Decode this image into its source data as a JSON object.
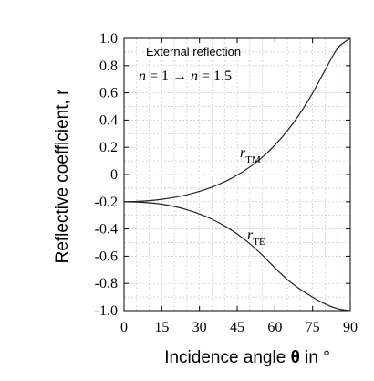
{
  "chart_data": {
    "type": "line",
    "xlabel_prefix": "Incidence angle ",
    "xlabel_symbol": "θ",
    "xlabel_suffix": " in °",
    "ylabel": "Reflective coefficient, r",
    "xlim": [
      0,
      90
    ],
    "ylim": [
      -1.0,
      1.0
    ],
    "xticks": [
      "0",
      "15",
      "30",
      "45",
      "60",
      "75",
      "90"
    ],
    "yticks": [
      "1.0",
      "0.8",
      "0.6",
      "0.4",
      "0.2",
      "0",
      "-0.2",
      "-0.4",
      "-0.6",
      "-0.8",
      "-1.0"
    ],
    "grid": true,
    "annotations": {
      "title_line": "External reflection",
      "condition_n1": "n",
      "condition_mid": " = 1 → ",
      "condition_n2": "n",
      "condition_end": " = 1.5"
    },
    "x": [
      0,
      5,
      10,
      15,
      20,
      25,
      30,
      35,
      40,
      45,
      50,
      55,
      60,
      65,
      70,
      75,
      80,
      85,
      90
    ],
    "series": [
      {
        "name": "r",
        "subscript": "TM",
        "values": [
          -0.2,
          -0.198,
          -0.192,
          -0.182,
          -0.168,
          -0.149,
          -0.124,
          -0.093,
          -0.053,
          -0.005,
          0.055,
          0.127,
          0.216,
          0.322,
          0.449,
          0.598,
          0.767,
          0.929,
          1.0
        ]
      },
      {
        "name": "r",
        "subscript": "TE",
        "values": [
          -0.2,
          -0.202,
          -0.208,
          -0.218,
          -0.235,
          -0.259,
          -0.29,
          -0.329,
          -0.378,
          -0.437,
          -0.508,
          -0.592,
          -0.686,
          -0.772,
          -0.842,
          -0.901,
          -0.951,
          -0.986,
          -1.0
        ]
      }
    ]
  }
}
